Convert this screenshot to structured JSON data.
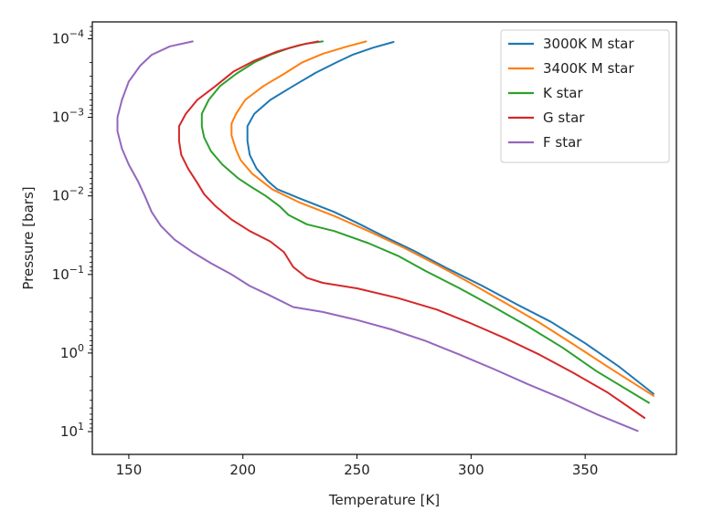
{
  "chart_data": {
    "type": "line",
    "xlabel": "Temperature [K]",
    "ylabel": "Pressure [bars]",
    "xlim": [
      134,
      390
    ],
    "ylim": [
      6.1e-05,
      19.5
    ],
    "yscale": "log",
    "y_inverted": true,
    "grid": false,
    "legend_position": "top-right",
    "x_ticks": [
      150,
      200,
      250,
      300,
      350
    ],
    "y_ticks": [
      {
        "value": 0.0001,
        "base": "10",
        "exp": "−4"
      },
      {
        "value": 0.001,
        "base": "10",
        "exp": "−3"
      },
      {
        "value": 0.01,
        "base": "10",
        "exp": "−2"
      },
      {
        "value": 0.1,
        "base": "10",
        "exp": "−1"
      },
      {
        "value": 1,
        "base": "10",
        "exp": "0"
      },
      {
        "value": 10,
        "base": "10",
        "exp": "1"
      }
    ],
    "series": [
      {
        "name": "3000K M star",
        "color": "#1f77b4",
        "points": [
          [
            266,
            0.00011
          ],
          [
            257,
            0.00013
          ],
          [
            248,
            0.00016
          ],
          [
            241,
            0.0002
          ],
          [
            232,
            0.00027
          ],
          [
            222,
            0.0004
          ],
          [
            212,
            0.0006
          ],
          [
            205,
            0.0009
          ],
          [
            202,
            0.0013
          ],
          [
            202,
            0.002
          ],
          [
            203,
            0.003
          ],
          [
            206,
            0.0045
          ],
          [
            211,
            0.0065
          ],
          [
            215,
            0.0082
          ],
          [
            225,
            0.0108
          ],
          [
            240,
            0.016
          ],
          [
            250,
            0.022
          ],
          [
            262,
            0.033
          ],
          [
            275,
            0.05
          ],
          [
            290,
            0.085
          ],
          [
            305,
            0.14
          ],
          [
            320,
            0.24
          ],
          [
            335,
            0.4
          ],
          [
            350,
            0.75
          ],
          [
            365,
            1.5
          ],
          [
            380,
            3.3
          ]
        ]
      },
      {
        "name": "3400K M star",
        "color": "#ff7f0e",
        "points": [
          [
            254,
            0.000108
          ],
          [
            245,
            0.000127
          ],
          [
            235,
            0.000155
          ],
          [
            226,
            0.0002
          ],
          [
            218,
            0.00028
          ],
          [
            209,
            0.0004
          ],
          [
            201,
            0.0006
          ],
          [
            197,
            0.0009
          ],
          [
            195,
            0.0012
          ],
          [
            195,
            0.0017
          ],
          [
            197,
            0.0026
          ],
          [
            199,
            0.0035
          ],
          [
            204,
            0.0052
          ],
          [
            213,
            0.0083
          ],
          [
            225,
            0.0122
          ],
          [
            240,
            0.018
          ],
          [
            255,
            0.028
          ],
          [
            270,
            0.045
          ],
          [
            285,
            0.075
          ],
          [
            300,
            0.13
          ],
          [
            315,
            0.23
          ],
          [
            330,
            0.41
          ],
          [
            345,
            0.78
          ],
          [
            360,
            1.5
          ],
          [
            380,
            3.5
          ]
        ]
      },
      {
        "name": "K star",
        "color": "#2ca02c",
        "points": [
          [
            235,
            0.000108
          ],
          [
            228,
            0.000115
          ],
          [
            220,
            0.000132
          ],
          [
            212,
            0.00016
          ],
          [
            205,
            0.0002
          ],
          [
            197,
            0.00028
          ],
          [
            190,
            0.0004
          ],
          [
            185,
            0.0006
          ],
          [
            182,
            0.0009
          ],
          [
            182,
            0.0013
          ],
          [
            183,
            0.0018
          ],
          [
            186,
            0.0027
          ],
          [
            191,
            0.004
          ],
          [
            198,
            0.006
          ],
          [
            204,
            0.0078
          ],
          [
            210,
            0.01
          ],
          [
            216,
            0.0135
          ],
          [
            220,
            0.0175
          ],
          [
            228,
            0.023
          ],
          [
            240,
            0.028
          ],
          [
            255,
            0.04
          ],
          [
            268,
            0.058
          ],
          [
            280,
            0.09
          ],
          [
            295,
            0.15
          ],
          [
            310,
            0.26
          ],
          [
            325,
            0.46
          ],
          [
            340,
            0.85
          ],
          [
            355,
            1.7
          ],
          [
            378,
            4.3
          ]
        ]
      },
      {
        "name": "G star",
        "color": "#d62728",
        "points": [
          [
            233,
            0.000108
          ],
          [
            225,
            0.00012
          ],
          [
            215,
            0.000145
          ],
          [
            205,
            0.00019
          ],
          [
            196,
            0.00026
          ],
          [
            188,
            0.0004
          ],
          [
            180,
            0.0006
          ],
          [
            175,
            0.0009
          ],
          [
            172,
            0.0013
          ],
          [
            172,
            0.002
          ],
          [
            173,
            0.003
          ],
          [
            176,
            0.0045
          ],
          [
            180,
            0.0068
          ],
          [
            183,
            0.0095
          ],
          [
            188,
            0.0135
          ],
          [
            195,
            0.02
          ],
          [
            203,
            0.028
          ],
          [
            212,
            0.038
          ],
          [
            218,
            0.052
          ],
          [
            222,
            0.08
          ],
          [
            228,
            0.11
          ],
          [
            235,
            0.128
          ],
          [
            250,
            0.15
          ],
          [
            268,
            0.2
          ],
          [
            285,
            0.28
          ],
          [
            300,
            0.42
          ],
          [
            315,
            0.65
          ],
          [
            330,
            1.05
          ],
          [
            345,
            1.8
          ],
          [
            360,
            3.2
          ],
          [
            376,
            6.7
          ]
        ]
      },
      {
        "name": "F star",
        "color": "#9467bd",
        "points": [
          [
            178,
            0.000108
          ],
          [
            168,
            0.000125
          ],
          [
            160,
            0.00016
          ],
          [
            155,
            0.00022
          ],
          [
            150,
            0.00035
          ],
          [
            147,
            0.0006
          ],
          [
            145,
            0.001
          ],
          [
            145,
            0.0015
          ],
          [
            147,
            0.0025
          ],
          [
            150,
            0.004
          ],
          [
            154,
            0.0065
          ],
          [
            157,
            0.01
          ],
          [
            160,
            0.016
          ],
          [
            164,
            0.024
          ],
          [
            170,
            0.036
          ],
          [
            178,
            0.052
          ],
          [
            186,
            0.072
          ],
          [
            195,
            0.1
          ],
          [
            203,
            0.14
          ],
          [
            211,
            0.18
          ],
          [
            222,
            0.26
          ],
          [
            235,
            0.3
          ],
          [
            250,
            0.38
          ],
          [
            265,
            0.5
          ],
          [
            280,
            0.7
          ],
          [
            295,
            1.05
          ],
          [
            310,
            1.6
          ],
          [
            325,
            2.5
          ],
          [
            340,
            3.8
          ],
          [
            355,
            6.0
          ],
          [
            373,
            9.8
          ]
        ]
      }
    ]
  }
}
